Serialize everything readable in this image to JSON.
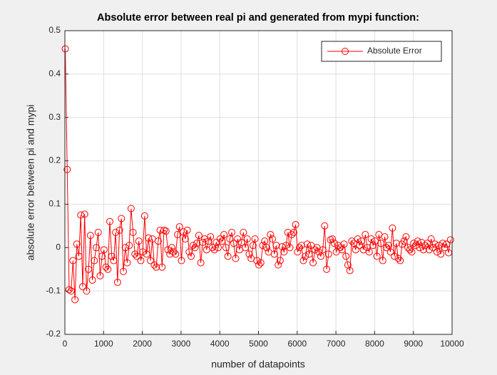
{
  "chart_data": {
    "type": "line",
    "title": "Absolute error between real pi and generated from mypi function:",
    "x_label": "number of datapoints",
    "y_label": "absolute error between pi and mypi",
    "x": [
      10,
      60,
      110,
      160,
      210,
      260,
      310,
      360,
      410,
      460,
      510,
      560,
      610,
      660,
      710,
      760,
      810,
      860,
      910,
      960,
      1010,
      1060,
      1110,
      1160,
      1210,
      1260,
      1310,
      1360,
      1410,
      1460,
      1510,
      1560,
      1610,
      1660,
      1710,
      1760,
      1810,
      1860,
      1910,
      1960,
      2010,
      2060,
      2110,
      2160,
      2210,
      2260,
      2310,
      2360,
      2410,
      2460,
      2510,
      2560,
      2610,
      2660,
      2710,
      2760,
      2810,
      2860,
      2910,
      2960,
      3010,
      3060,
      3110,
      3160,
      3210,
      3260,
      3310,
      3360,
      3410,
      3460,
      3510,
      3560,
      3610,
      3660,
      3710,
      3760,
      3810,
      3860,
      3910,
      3960,
      4010,
      4060,
      4110,
      4160,
      4210,
      4260,
      4310,
      4360,
      4410,
      4460,
      4510,
      4560,
      4610,
      4660,
      4710,
      4760,
      4810,
      4860,
      4910,
      4960,
      5010,
      5060,
      5110,
      5160,
      5210,
      5260,
      5310,
      5360,
      5410,
      5460,
      5510,
      5560,
      5610,
      5660,
      5710,
      5760,
      5810,
      5860,
      5910,
      5960,
      6010,
      6060,
      6110,
      6160,
      6210,
      6260,
      6310,
      6360,
      6410,
      6460,
      6510,
      6560,
      6610,
      6660,
      6710,
      6760,
      6810,
      6860,
      6910,
      6960,
      7010,
      7060,
      7110,
      7160,
      7210,
      7260,
      7310,
      7360,
      7410,
      7460,
      7510,
      7560,
      7610,
      7660,
      7710,
      7760,
      7810,
      7860,
      7910,
      7960,
      8010,
      8060,
      8110,
      8160,
      8210,
      8260,
      8310,
      8360,
      8410,
      8460,
      8510,
      8560,
      8610,
      8660,
      8710,
      8760,
      8810,
      8860,
      8910,
      8960,
      9010,
      9060,
      9110,
      9160,
      9210,
      9260,
      9310,
      9360,
      9410,
      9460,
      9510,
      9560,
      9610,
      9660,
      9710,
      9760,
      9810,
      9860,
      9910,
      9960
    ],
    "series": [
      {
        "name": "Absolute Error",
        "color": "#ff0000",
        "values": [
          0.458,
          0.18,
          -0.097,
          -0.1,
          -0.03,
          -0.12,
          0.008,
          -0.02,
          0.075,
          -0.09,
          0.077,
          -0.1,
          -0.05,
          0.028,
          -0.075,
          -0.03,
          0.0,
          0.035,
          -0.065,
          -0.02,
          -0.005,
          -0.045,
          -0.05,
          0.06,
          -0.02,
          -0.03,
          0.035,
          -0.08,
          0.04,
          0.067,
          -0.055,
          0.0,
          -0.035,
          0.005,
          0.09,
          0.035,
          -0.015,
          -0.02,
          0.015,
          -0.03,
          -0.01,
          0.073,
          -0.015,
          0.022,
          -0.03,
          0.02,
          -0.04,
          -0.045,
          0.015,
          0.04,
          -0.045,
          0.04,
          0.038,
          -0.005,
          -0.015,
          0.0,
          -0.01,
          -0.015,
          0.03,
          0.048,
          -0.03,
          0.036,
          0.02,
          0.04,
          -0.01,
          -0.02,
          0.005,
          0.0,
          0.01,
          0.028,
          -0.035,
          0.012,
          0.02,
          -0.005,
          0.015,
          0.025,
          0.0,
          -0.005,
          0.012,
          0.0,
          0.02,
          0.015,
          0.03,
          0.0,
          -0.02,
          0.02,
          0.035,
          0.01,
          -0.025,
          0.02,
          -0.005,
          0.012,
          0.035,
          0.0,
          0.02,
          -0.015,
          -0.025,
          0.005,
          0.02,
          -0.03,
          -0.04,
          -0.035,
          0.005,
          0.015,
          0.0,
          -0.01,
          0.03,
          0.02,
          -0.015,
          0.005,
          -0.04,
          -0.03,
          0.002,
          -0.01,
          0.005,
          0.035,
          0.0,
          0.03,
          0.035,
          0.053,
          -0.01,
          0.0,
          0.005,
          -0.03,
          -0.02,
          0.008,
          -0.015,
          0.005,
          -0.035,
          -0.005,
          0.0,
          -0.01,
          -0.02,
          -0.005,
          0.05,
          -0.05,
          -0.015,
          0.018,
          0.02,
          0.01,
          -0.01,
          0.005,
          0.0,
          -0.005,
          0.008,
          -0.02,
          -0.04,
          -0.053,
          0.015,
          0.01,
          -0.005,
          0.02,
          0.005,
          0.015,
          -0.005,
          0.03,
          0.0,
          -0.01,
          0.02,
          0.005,
          0.015,
          -0.02,
          0.03,
          0.01,
          -0.03,
          0.025,
          0.0,
          0.005,
          -0.01,
          0.045,
          -0.02,
          0.01,
          -0.025,
          -0.03,
          0.008,
          0.015,
          0.025,
          0.0,
          -0.005,
          -0.01,
          0.01,
          0.005,
          0.015,
          0.0,
          0.012,
          -0.005,
          0.005,
          0.01,
          -0.005,
          0.02,
          0.0,
          0.008,
          -0.01,
          0.005,
          -0.015,
          0.01,
          0.0,
          0.008,
          -0.012,
          0.018
        ]
      }
    ],
    "xlim": [
      0,
      10000
    ],
    "xticks": [
      0,
      1000,
      2000,
      3000,
      4000,
      5000,
      6000,
      7000,
      8000,
      9000,
      10000
    ],
    "ylim": [
      -0.2,
      0.5
    ],
    "yticks": [
      -0.2,
      -0.1,
      0,
      0.1,
      0.2,
      0.3,
      0.4,
      0.5
    ],
    "grid": true,
    "legend_position": "upper right"
  }
}
